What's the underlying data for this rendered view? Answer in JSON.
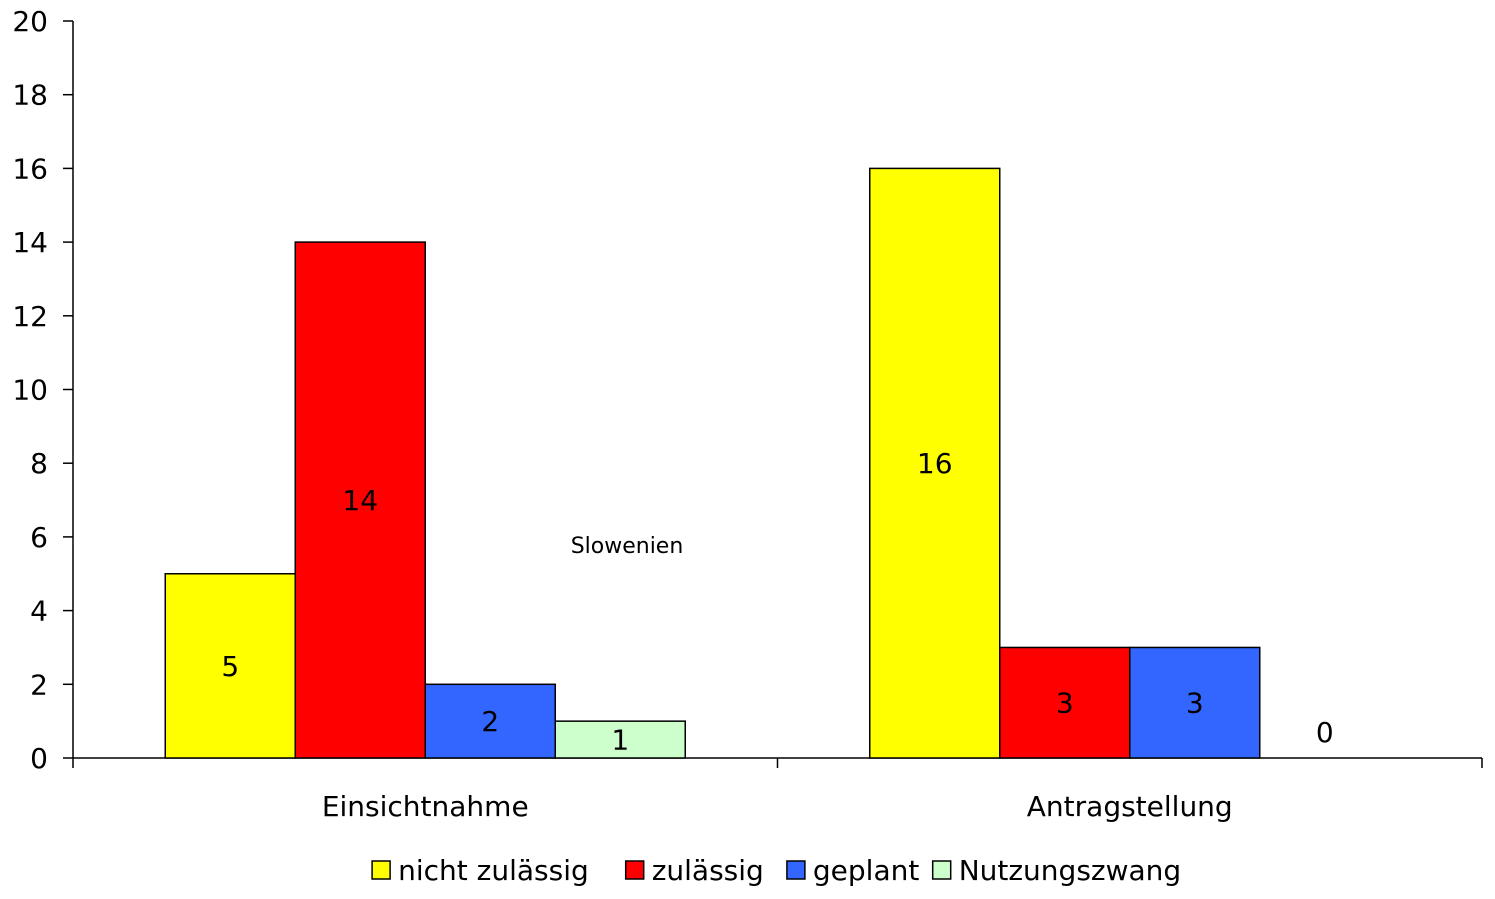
{
  "chart_data": {
    "type": "bar",
    "categories": [
      "Einsichtnahme",
      "Antragstellung"
    ],
    "series": [
      {
        "name": "nicht zulässig",
        "values": [
          5,
          16
        ],
        "color": "#FFFF00"
      },
      {
        "name": "zulässig",
        "values": [
          14,
          3
        ],
        "color": "#FF0000"
      },
      {
        "name": "geplant",
        "values": [
          2,
          3
        ],
        "color": "#3366FF"
      },
      {
        "name": "Nutzungszwang",
        "values": [
          1,
          0
        ],
        "color": "#CCFFCC"
      }
    ],
    "yticks": [
      "0",
      "2",
      "4",
      "6",
      "8",
      "10",
      "12",
      "14",
      "16",
      "18",
      "20"
    ],
    "ylim": [
      0,
      20
    ],
    "annotation": "Slowenien",
    "legend_position": "bottom",
    "grid": false
  }
}
